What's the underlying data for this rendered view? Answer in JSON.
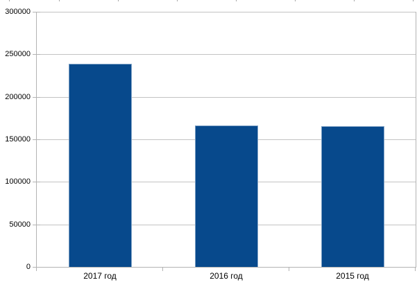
{
  "chart_data": {
    "type": "bar",
    "title": "",
    "xlabel": "",
    "ylabel": "",
    "categories": [
      "2017 год",
      "2016 год",
      "2015 год"
    ],
    "values": [
      238600,
      166500,
      165500
    ],
    "ylim": [
      0,
      300000
    ],
    "ytick_step": 50000,
    "ytick_labels": [
      "0",
      "50000",
      "100000",
      "150000",
      "200000",
      "250000",
      "300000"
    ],
    "grid": true,
    "legend": "none",
    "colors": {
      "bar_fill": "#07498c",
      "bar_border": "#7fa2c6",
      "grid_line": "#c2c2c2",
      "axis_line": "#b3b3b3",
      "label_text": "#000000",
      "background": "#ffffff",
      "top_artifact": "#a6a6a6"
    }
  }
}
